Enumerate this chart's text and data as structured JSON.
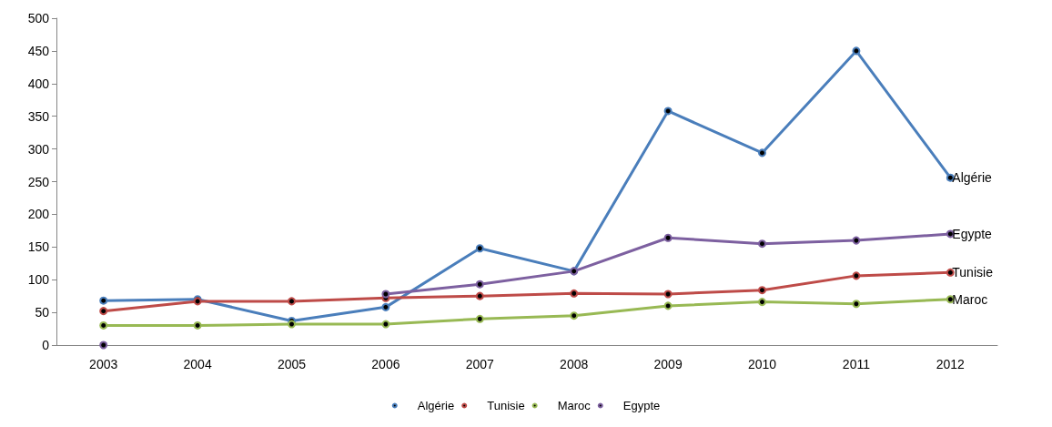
{
  "chart_data": {
    "type": "line",
    "categories": [
      "2003",
      "2004",
      "2005",
      "2006",
      "2007",
      "2008",
      "2009",
      "2010",
      "2011",
      "2012"
    ],
    "series": [
      {
        "name": "Algérie",
        "color": "#4a7ebb",
        "values": [
          68,
          70,
          37,
          58,
          148,
          113,
          358,
          294,
          450,
          256
        ]
      },
      {
        "name": "Tunisie",
        "color": "#be4b48",
        "values": [
          52,
          67,
          67,
          72,
          75,
          79,
          78,
          84,
          106,
          111
        ]
      },
      {
        "name": "Maroc",
        "color": "#98b954",
        "values": [
          30,
          30,
          32,
          32,
          40,
          45,
          60,
          66,
          63,
          70
        ]
      },
      {
        "name": "Egypte",
        "color": "#7d60a0",
        "values": [
          0,
          null,
          null,
          78,
          93,
          113,
          164,
          155,
          160,
          170
        ]
      }
    ],
    "ylim": [
      0,
      500
    ],
    "yticks": [
      0,
      50,
      100,
      150,
      200,
      250,
      300,
      350,
      400,
      450,
      500
    ],
    "grid": false,
    "legend": "bottom",
    "marker": "circle",
    "line_style": "solid"
  }
}
